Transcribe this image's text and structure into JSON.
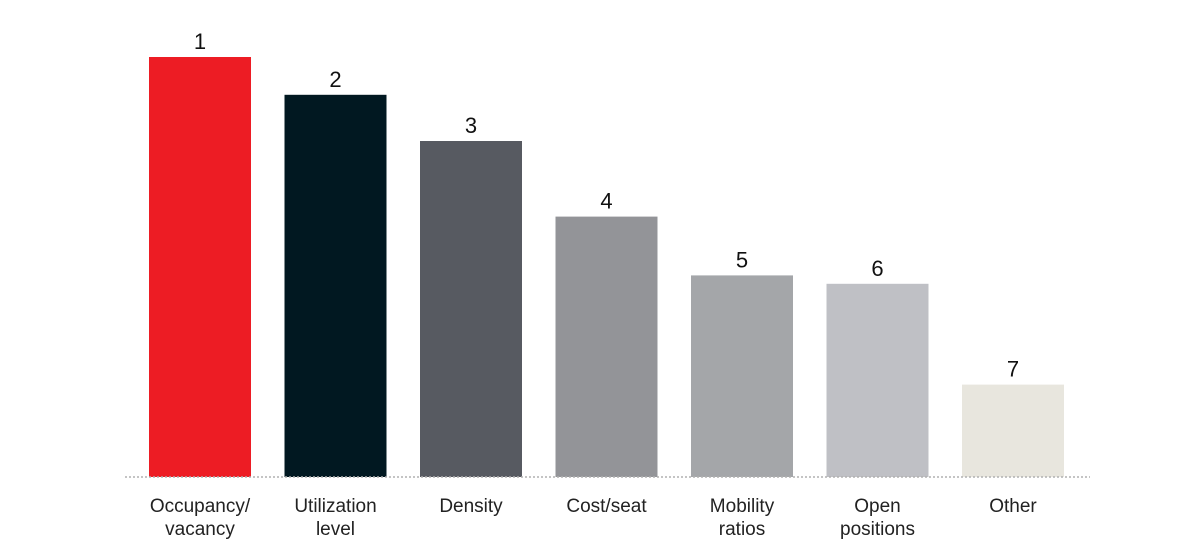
{
  "chart_data": {
    "type": "bar",
    "categories": [
      [
        "Occupancy/",
        "vacancy"
      ],
      [
        "Utilization",
        "level"
      ],
      [
        "Density"
      ],
      [
        "Cost/seat"
      ],
      [
        "Mobility",
        "ratios"
      ],
      [
        "Open",
        "positions"
      ],
      [
        "Other"
      ]
    ],
    "values": [
      100,
      91,
      80,
      62,
      48,
      46,
      22
    ],
    "data_labels": [
      "1",
      "2",
      "3",
      "4",
      "5",
      "6",
      "7"
    ],
    "colors": [
      "#ED1C24",
      "#011821",
      "#575A61",
      "#939498",
      "#A4A6A9",
      "#BFC0C5",
      "#E8E6DE"
    ],
    "title": "",
    "xlabel": "",
    "ylabel": "",
    "ylim": [
      0,
      100
    ],
    "grid": false,
    "legend": "none"
  }
}
